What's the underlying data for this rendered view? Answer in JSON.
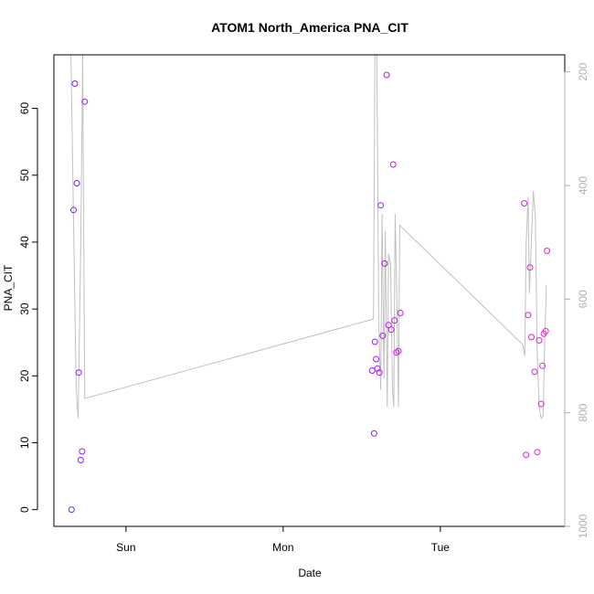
{
  "chart_data": {
    "type": "scatter",
    "title": "ATOM1 North_America PNA_CIT",
    "xlabel": "Date",
    "ylabel": "PNA_CIT",
    "x_tick_labels": [
      "Sun",
      "Mon",
      "Tue"
    ],
    "x_ticks_hours": [
      0,
      24,
      48
    ],
    "x_range_hours": [
      -11.0,
      67.0
    ],
    "ylim": [
      -2.5,
      68.0
    ],
    "y_ticks": [
      0,
      10,
      20,
      30,
      40,
      50,
      60
    ],
    "y2_reversed": true,
    "y2lim": [
      1000,
      170
    ],
    "y2_ticks": [
      200,
      400,
      600,
      800,
      1000
    ],
    "colors": {
      "points_start": "#7a1aff",
      "points_end": "#ff1ad0",
      "line": "#c0c0c0",
      "axis": "#000000",
      "right_axis": "#b0b0b0"
    },
    "points": [
      {
        "x": -8.3,
        "y": 0.0
      },
      {
        "x": -8.0,
        "y": 44.8
      },
      {
        "x": -7.8,
        "y": 63.7
      },
      {
        "x": -7.5,
        "y": 48.8
      },
      {
        "x": -7.2,
        "y": 20.5
      },
      {
        "x": -6.9,
        "y": 7.4
      },
      {
        "x": -6.7,
        "y": 8.7
      },
      {
        "x": -6.3,
        "y": 61.0
      },
      {
        "x": 37.6,
        "y": 20.8
      },
      {
        "x": 37.9,
        "y": 11.4
      },
      {
        "x": 38.0,
        "y": 25.1
      },
      {
        "x": 38.2,
        "y": 22.5
      },
      {
        "x": 38.4,
        "y": 21.1
      },
      {
        "x": 38.7,
        "y": 20.5
      },
      {
        "x": 38.9,
        "y": 45.5
      },
      {
        "x": 39.2,
        "y": 26.0
      },
      {
        "x": 39.5,
        "y": 36.8
      },
      {
        "x": 39.8,
        "y": 65.0
      },
      {
        "x": 40.1,
        "y": 27.6
      },
      {
        "x": 40.5,
        "y": 26.9
      },
      {
        "x": 40.8,
        "y": 51.6
      },
      {
        "x": 41.0,
        "y": 28.3
      },
      {
        "x": 41.3,
        "y": 23.5
      },
      {
        "x": 41.6,
        "y": 23.7
      },
      {
        "x": 41.9,
        "y": 29.4
      },
      {
        "x": 60.8,
        "y": 45.8
      },
      {
        "x": 61.1,
        "y": 8.2
      },
      {
        "x": 61.4,
        "y": 29.1
      },
      {
        "x": 61.7,
        "y": 36.2
      },
      {
        "x": 61.9,
        "y": 25.8
      },
      {
        "x": 62.4,
        "y": 20.6
      },
      {
        "x": 62.8,
        "y": 8.6
      },
      {
        "x": 63.1,
        "y": 25.3
      },
      {
        "x": 63.4,
        "y": 15.8
      },
      {
        "x": 63.6,
        "y": 21.5
      },
      {
        "x": 63.8,
        "y": 26.3
      },
      {
        "x": 64.1,
        "y": 26.7
      },
      {
        "x": 64.3,
        "y": 38.7
      }
    ],
    "pressure_line": [
      {
        "x": -8.4,
        "y2": 170
      },
      {
        "x": -7.6,
        "y2": 760
      },
      {
        "x": -7.3,
        "y2": 810
      },
      {
        "x": -6.9,
        "y2": 500
      },
      {
        "x": -6.6,
        "y2": 170
      },
      {
        "x": -6.3,
        "y2": 775
      },
      {
        "x": 37.8,
        "y2": 635
      },
      {
        "x": 38.0,
        "y2": 170
      },
      {
        "x": 38.3,
        "y2": 170
      },
      {
        "x": 38.6,
        "y2": 640
      },
      {
        "x": 38.9,
        "y2": 760
      },
      {
        "x": 39.1,
        "y2": 450
      },
      {
        "x": 39.4,
        "y2": 740
      },
      {
        "x": 39.6,
        "y2": 480
      },
      {
        "x": 39.9,
        "y2": 790
      },
      {
        "x": 40.1,
        "y2": 520
      },
      {
        "x": 40.4,
        "y2": 540
      },
      {
        "x": 40.7,
        "y2": 760
      },
      {
        "x": 40.9,
        "y2": 790
      },
      {
        "x": 41.1,
        "y2": 450
      },
      {
        "x": 41.4,
        "y2": 620
      },
      {
        "x": 41.6,
        "y2": 790
      },
      {
        "x": 41.8,
        "y2": 470
      },
      {
        "x": 60.6,
        "y2": 680
      },
      {
        "x": 60.9,
        "y2": 700
      },
      {
        "x": 61.1,
        "y2": 505
      },
      {
        "x": 61.4,
        "y2": 420
      },
      {
        "x": 61.6,
        "y2": 590
      },
      {
        "x": 61.9,
        "y2": 495
      },
      {
        "x": 62.2,
        "y2": 410
      },
      {
        "x": 62.5,
        "y2": 455
      },
      {
        "x": 62.8,
        "y2": 700
      },
      {
        "x": 63.1,
        "y2": 790
      },
      {
        "x": 63.4,
        "y2": 810
      },
      {
        "x": 63.7,
        "y2": 805
      },
      {
        "x": 63.9,
        "y2": 690
      },
      {
        "x": 64.2,
        "y2": 575
      }
    ]
  }
}
